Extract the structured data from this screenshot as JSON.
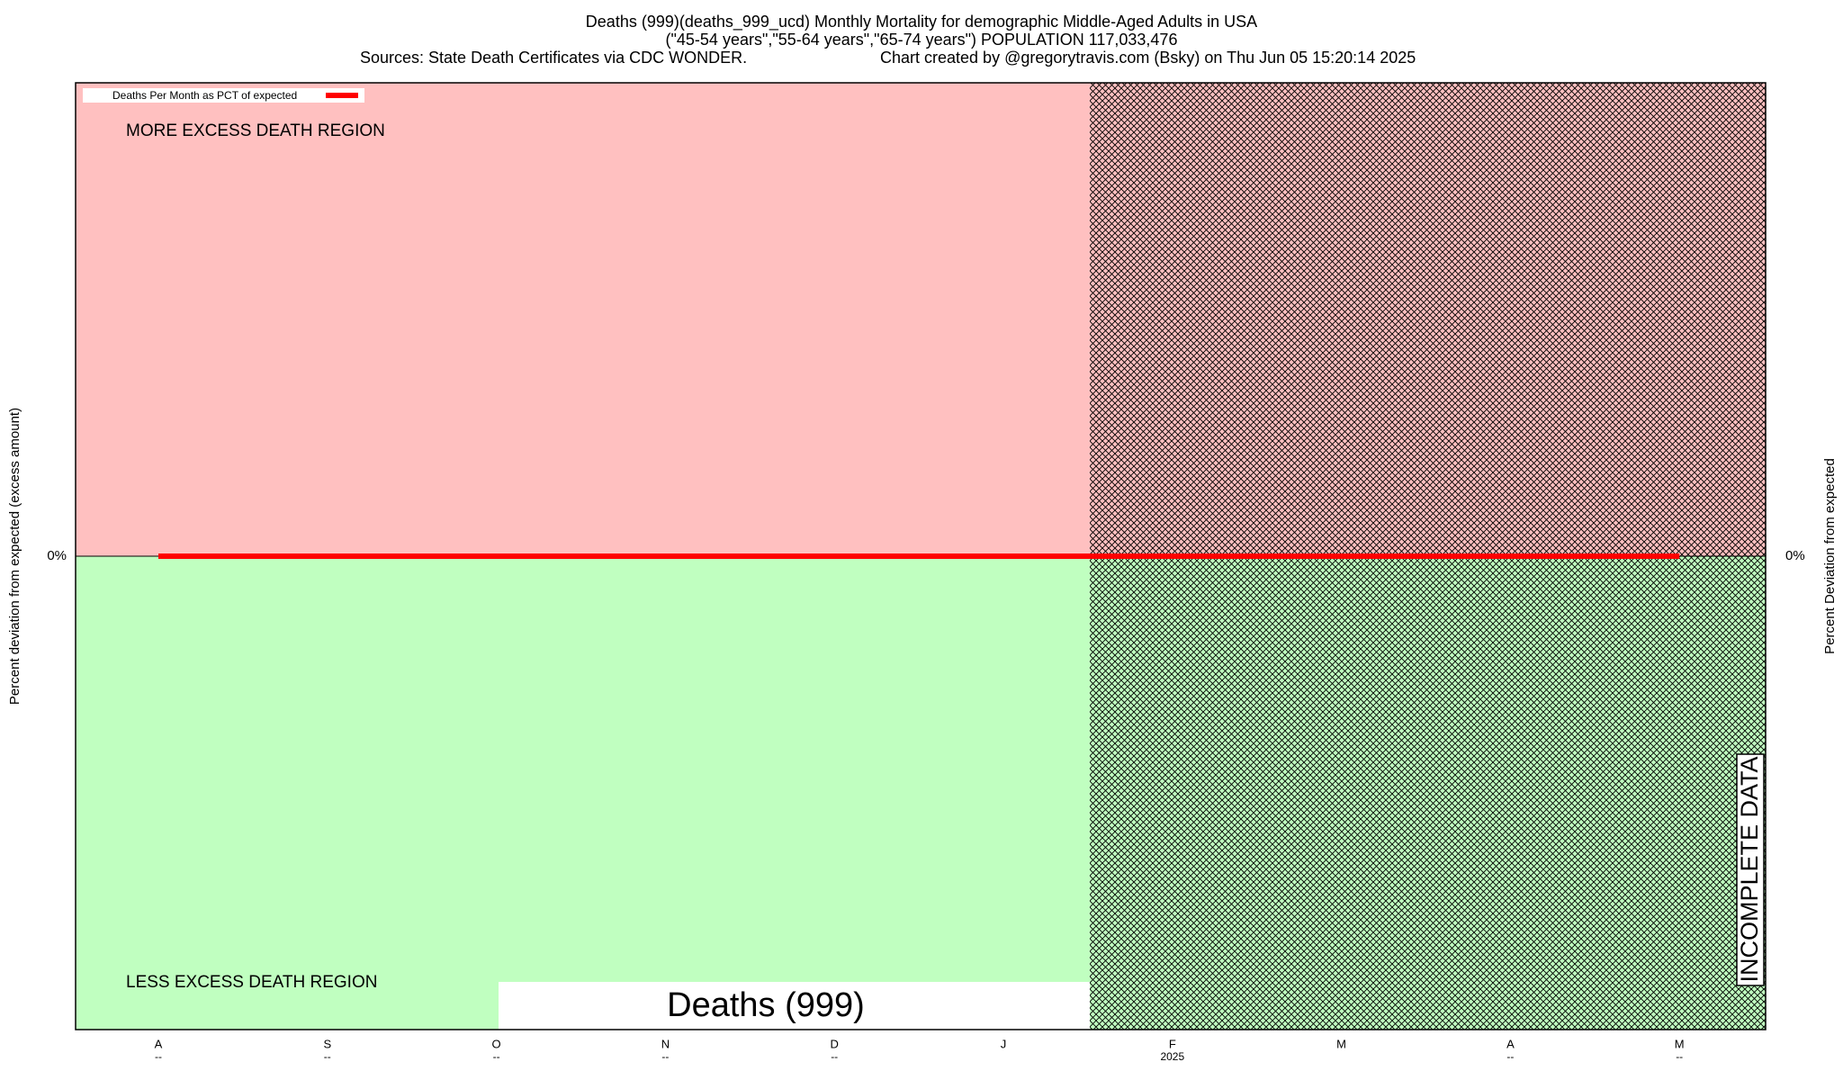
{
  "chart_data": {
    "type": "line",
    "title_lines": [
      "Deaths (999)(deaths_999_ucd) Monthly Mortality for demographic Middle-Aged Adults in USA",
      "(\"45-54 years\",\"55-64 years\",\"65-74 years\") POPULATION 117,033,476"
    ],
    "source": "Sources: State Death Certificates via CDC WONDER.",
    "credit": "Chart created by @gregorytravis.com (Bsky) on Thu Jun 05 15:20:14 2025",
    "y_label": "Percent deviation from expected (excess amount)",
    "y2_label": "Percent Deviation from expected",
    "upper_region_label": "MORE EXCESS DEATH REGION",
    "lower_region_label": "LESS EXCESS DEATH REGION",
    "incomplete_label": "INCOMPLETE DATA",
    "watermark": "Deaths (999)",
    "categories": [
      "A",
      "S",
      "O",
      "N",
      "D",
      "J",
      "F",
      "M",
      "A",
      "M"
    ],
    "category_sublabels": [
      "--",
      "--",
      "--",
      "--",
      "--",
      null,
      "2025",
      null,
      "--",
      "--"
    ],
    "series": [
      {
        "name": "Deaths Per Month as PCT of expected",
        "color": "#ff0000",
        "values": [
          0,
          0,
          0,
          0,
          0,
          0,
          0,
          0,
          0,
          0
        ]
      }
    ],
    "ylim": [
      -1,
      1
    ],
    "yticks": [
      {
        "value": 0,
        "label": "0%"
      }
    ],
    "y2ticks": [
      {
        "value": 0,
        "label": "0%"
      }
    ],
    "upper_color": "#ffc0c0",
    "lower_color": "#c0ffc0"
  }
}
